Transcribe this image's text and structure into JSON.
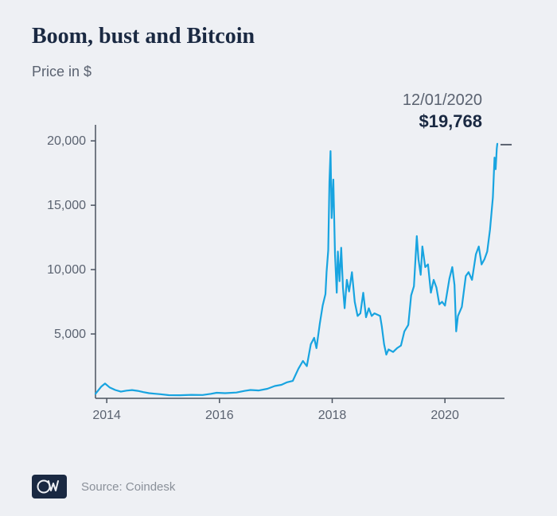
{
  "title": "Boom, bust and Bitcoin",
  "subtitle": "Price in $",
  "source_label": "Source: Coindesk",
  "logo_text": "DW",
  "callout": {
    "date": "12/01/2020",
    "value": "$19,768"
  },
  "chart": {
    "type": "line",
    "line_color": "#18a4e0",
    "line_width": 2.2,
    "background_color": "#eef0f4",
    "axis_color": "#4a525f",
    "tick_color": "#4a525f",
    "label_color": "#5a6270",
    "label_fontsize": 16,
    "x": {
      "min": 2013.8,
      "max": 2021.0,
      "ticks": [
        2014,
        2016,
        2018,
        2020
      ],
      "tick_labels": [
        "2014",
        "2016",
        "2018",
        "2020"
      ]
    },
    "y": {
      "min": 0,
      "max": 21000,
      "ticks": [
        5000,
        10000,
        15000,
        20000
      ],
      "tick_labels": [
        "5,000",
        "10,000",
        "15,000",
        "20,000"
      ]
    },
    "series": [
      {
        "t": 2013.8,
        "v": 350
      },
      {
        "t": 2013.9,
        "v": 900
      },
      {
        "t": 2013.97,
        "v": 1150
      },
      {
        "t": 2014.05,
        "v": 850
      },
      {
        "t": 2014.15,
        "v": 650
      },
      {
        "t": 2014.25,
        "v": 520
      },
      {
        "t": 2014.35,
        "v": 600
      },
      {
        "t": 2014.45,
        "v": 640
      },
      {
        "t": 2014.55,
        "v": 580
      },
      {
        "t": 2014.65,
        "v": 480
      },
      {
        "t": 2014.75,
        "v": 400
      },
      {
        "t": 2014.85,
        "v": 360
      },
      {
        "t": 2014.95,
        "v": 320
      },
      {
        "t": 2015.1,
        "v": 250
      },
      {
        "t": 2015.3,
        "v": 240
      },
      {
        "t": 2015.5,
        "v": 270
      },
      {
        "t": 2015.7,
        "v": 260
      },
      {
        "t": 2015.85,
        "v": 350
      },
      {
        "t": 2015.95,
        "v": 430
      },
      {
        "t": 2016.1,
        "v": 400
      },
      {
        "t": 2016.3,
        "v": 450
      },
      {
        "t": 2016.45,
        "v": 580
      },
      {
        "t": 2016.55,
        "v": 650
      },
      {
        "t": 2016.7,
        "v": 610
      },
      {
        "t": 2016.85,
        "v": 740
      },
      {
        "t": 2016.98,
        "v": 960
      },
      {
        "t": 2017.1,
        "v": 1050
      },
      {
        "t": 2017.2,
        "v": 1250
      },
      {
        "t": 2017.3,
        "v": 1350
      },
      {
        "t": 2017.4,
        "v": 2300
      },
      {
        "t": 2017.48,
        "v": 2900
      },
      {
        "t": 2017.55,
        "v": 2500
      },
      {
        "t": 2017.62,
        "v": 4200
      },
      {
        "t": 2017.68,
        "v": 4700
      },
      {
        "t": 2017.72,
        "v": 3900
      },
      {
        "t": 2017.78,
        "v": 5800
      },
      {
        "t": 2017.83,
        "v": 7200
      },
      {
        "t": 2017.88,
        "v": 8100
      },
      {
        "t": 2017.9,
        "v": 9800
      },
      {
        "t": 2017.93,
        "v": 11500
      },
      {
        "t": 2017.95,
        "v": 16800
      },
      {
        "t": 2017.97,
        "v": 19200
      },
      {
        "t": 2017.99,
        "v": 14000
      },
      {
        "t": 2018.02,
        "v": 17000
      },
      {
        "t": 2018.05,
        "v": 11200
      },
      {
        "t": 2018.08,
        "v": 8200
      },
      {
        "t": 2018.1,
        "v": 11400
      },
      {
        "t": 2018.13,
        "v": 9100
      },
      {
        "t": 2018.16,
        "v": 11700
      },
      {
        "t": 2018.19,
        "v": 8600
      },
      {
        "t": 2018.22,
        "v": 7000
      },
      {
        "t": 2018.26,
        "v": 9200
      },
      {
        "t": 2018.3,
        "v": 8300
      },
      {
        "t": 2018.35,
        "v": 9800
      },
      {
        "t": 2018.4,
        "v": 7500
      },
      {
        "t": 2018.45,
        "v": 6400
      },
      {
        "t": 2018.5,
        "v": 6600
      },
      {
        "t": 2018.55,
        "v": 8200
      },
      {
        "t": 2018.6,
        "v": 6300
      },
      {
        "t": 2018.65,
        "v": 7000
      },
      {
        "t": 2018.7,
        "v": 6400
      },
      {
        "t": 2018.75,
        "v": 6600
      },
      {
        "t": 2018.8,
        "v": 6500
      },
      {
        "t": 2018.85,
        "v": 6400
      },
      {
        "t": 2018.88,
        "v": 5600
      },
      {
        "t": 2018.92,
        "v": 4200
      },
      {
        "t": 2018.96,
        "v": 3400
      },
      {
        "t": 2019.0,
        "v": 3800
      },
      {
        "t": 2019.08,
        "v": 3600
      },
      {
        "t": 2019.15,
        "v": 3900
      },
      {
        "t": 2019.22,
        "v": 4100
      },
      {
        "t": 2019.28,
        "v": 5200
      },
      {
        "t": 2019.35,
        "v": 5700
      },
      {
        "t": 2019.4,
        "v": 8000
      },
      {
        "t": 2019.45,
        "v": 8700
      },
      {
        "t": 2019.48,
        "v": 11000
      },
      {
        "t": 2019.5,
        "v": 12600
      },
      {
        "t": 2019.53,
        "v": 10800
      },
      {
        "t": 2019.57,
        "v": 9600
      },
      {
        "t": 2019.6,
        "v": 11800
      },
      {
        "t": 2019.65,
        "v": 10200
      },
      {
        "t": 2019.7,
        "v": 10400
      },
      {
        "t": 2019.75,
        "v": 8200
      },
      {
        "t": 2019.8,
        "v": 9200
      },
      {
        "t": 2019.85,
        "v": 8600
      },
      {
        "t": 2019.9,
        "v": 7300
      },
      {
        "t": 2019.95,
        "v": 7500
      },
      {
        "t": 2020.0,
        "v": 7200
      },
      {
        "t": 2020.08,
        "v": 9300
      },
      {
        "t": 2020.13,
        "v": 10200
      },
      {
        "t": 2020.17,
        "v": 8800
      },
      {
        "t": 2020.2,
        "v": 5200
      },
      {
        "t": 2020.23,
        "v": 6400
      },
      {
        "t": 2020.3,
        "v": 7100
      },
      {
        "t": 2020.37,
        "v": 9500
      },
      {
        "t": 2020.42,
        "v": 9800
      },
      {
        "t": 2020.48,
        "v": 9200
      },
      {
        "t": 2020.55,
        "v": 11200
      },
      {
        "t": 2020.6,
        "v": 11800
      },
      {
        "t": 2020.65,
        "v": 10400
      },
      {
        "t": 2020.7,
        "v": 10800
      },
      {
        "t": 2020.75,
        "v": 11400
      },
      {
        "t": 2020.8,
        "v": 13100
      },
      {
        "t": 2020.85,
        "v": 15600
      },
      {
        "t": 2020.88,
        "v": 18700
      },
      {
        "t": 2020.9,
        "v": 17800
      },
      {
        "t": 2020.92,
        "v": 19400
      },
      {
        "t": 2020.93,
        "v": 19768
      }
    ],
    "callout_marker": {
      "x": 2020.93,
      "y_label": 19768,
      "tick_color": "#5a6270"
    }
  }
}
